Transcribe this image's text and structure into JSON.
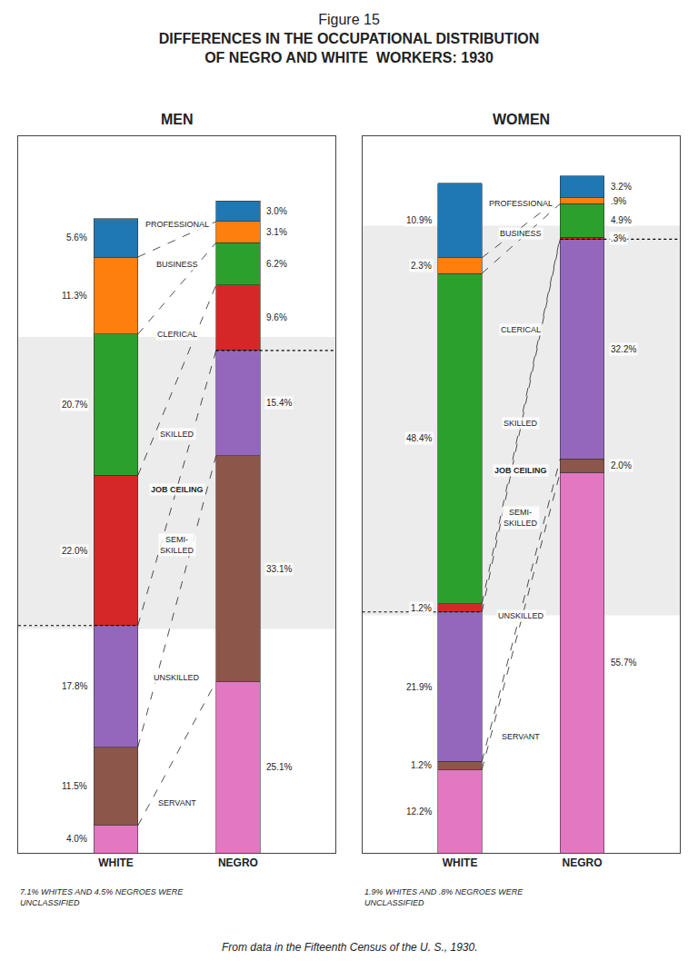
{
  "figure_label": "Figure 15",
  "title": "DIFFERENCES IN THE OCCUPATIONAL DISTRIBUTION\nOF NEGRO AND WHITE  WORKERS: 1930",
  "source_note": "From data in the Fifteenth Census of the U. S., 1930.",
  "chart_data": [
    {
      "type": "bar",
      "title": "MEN",
      "stacked": true,
      "data_labels": true,
      "tick_labels": "x",
      "grid": false,
      "categories": [
        "WHITE",
        "NEGRO"
      ],
      "ylim": [
        0,
        105
      ],
      "yticks": [],
      "series": [
        {
          "name": "PROFESSIONAL",
          "color": "#1f77b4",
          "values": [
            5.6,
            3.0
          ],
          "value_labels": [
            "5.6%",
            "3.0%"
          ]
        },
        {
          "name": "BUSINESS",
          "color": "#ff7f0e",
          "values": [
            11.3,
            3.1
          ],
          "value_labels": [
            "11.3%",
            "3.1%"
          ]
        },
        {
          "name": "CLERICAL",
          "color": "#2ca02c",
          "values": [
            20.7,
            6.2
          ],
          "value_labels": [
            "20.7%",
            "6.2%"
          ]
        },
        {
          "name": "SKILLED",
          "color": "#d62728",
          "values": [
            22.0,
            9.6
          ],
          "value_labels": [
            "22.0%",
            "9.6%"
          ]
        },
        {
          "name": "SEMI-\nSKILLED",
          "color": "#9467bd",
          "values": [
            17.8,
            15.4
          ],
          "value_labels": [
            "17.8%",
            "15.4%"
          ]
        },
        {
          "name": "UNSKILLED",
          "color": "#8c564b",
          "values": [
            11.5,
            33.1
          ],
          "value_labels": [
            "11.5%",
            "33.1%"
          ]
        },
        {
          "name": "SERVANT",
          "color": "#e377c2",
          "values": [
            4.0,
            25.1
          ],
          "value_labels": [
            "4.0%",
            "25.1%"
          ]
        }
      ],
      "annotations": [
        "JOB CEILING",
        "7.1% WHITES AND 4.5% NEGROES WERE\nUNCLASSIFIED"
      ]
    },
    {
      "type": "bar",
      "title": "WOMEN",
      "stacked": true,
      "data_labels": true,
      "tick_labels": "x",
      "grid": false,
      "categories": [
        "WHITE",
        "NEGRO"
      ],
      "ylim": [
        0,
        105
      ],
      "yticks": [],
      "series": [
        {
          "name": "PROFESSIONAL",
          "color": "#1f77b4",
          "values": [
            10.9,
            3.2
          ],
          "value_labels": [
            "10.9%",
            "3.2%"
          ]
        },
        {
          "name": "BUSINESS",
          "color": "#ff7f0e",
          "values": [
            2.3,
            0.9
          ],
          "value_labels": [
            "2.3%",
            ".9%"
          ]
        },
        {
          "name": "CLERICAL",
          "color": "#2ca02c",
          "values": [
            48.4,
            4.9
          ],
          "value_labels": [
            "48.4%",
            "4.9%"
          ]
        },
        {
          "name": "SKILLED",
          "color": "#d62728",
          "values": [
            1.2,
            0.3
          ],
          "value_labels": [
            "1.2%",
            ".3%"
          ]
        },
        {
          "name": "SEMI-\nSKILLED",
          "color": "#9467bd",
          "values": [
            21.9,
            32.2
          ],
          "value_labels": [
            "21.9%",
            "32.2%"
          ]
        },
        {
          "name": "UNSKILLED",
          "color": "#8c564b",
          "values": [
            1.2,
            2.0
          ],
          "value_labels": [
            "1.2%",
            "2.0%"
          ]
        },
        {
          "name": "SERVANT",
          "color": "#e377c2",
          "values": [
            12.2,
            55.7
          ],
          "value_labels": [
            "12.2%",
            "55.7%"
          ]
        }
      ],
      "annotations": [
        "JOB CEILING",
        "1.9% WHITES AND .8% NEGROES WERE\nUNCLASSIFIED"
      ]
    }
  ]
}
